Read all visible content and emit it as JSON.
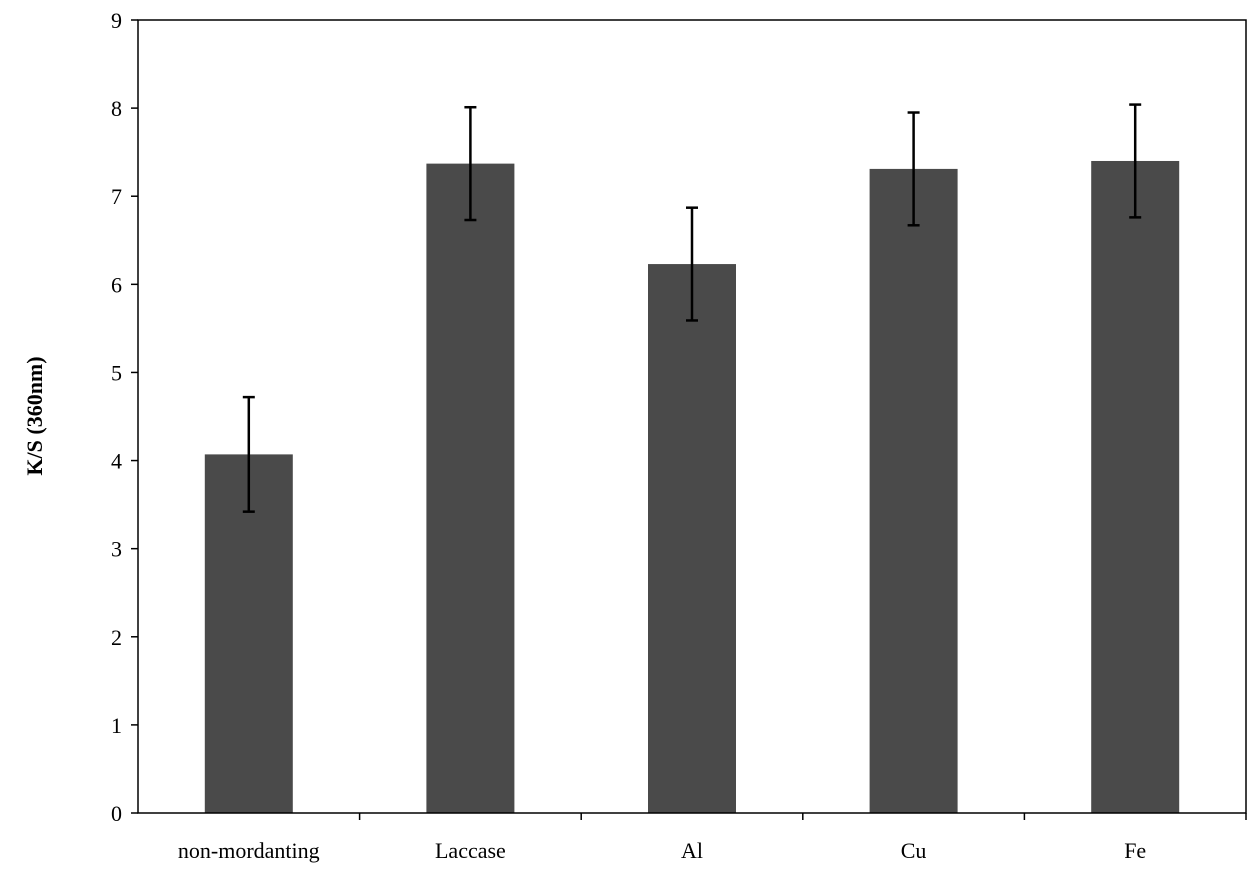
{
  "chart_data": {
    "type": "bar",
    "title": "",
    "xlabel": "",
    "ylabel": "K/S (360nm)",
    "ylim": [
      0,
      9
    ],
    "yticks": [
      "0",
      "1",
      "2",
      "3",
      "4",
      "5",
      "6",
      "7",
      "8",
      "9"
    ],
    "grid": false,
    "categories": [
      "non-mordanting",
      "Laccase",
      "Al",
      "Cu",
      "Fe"
    ],
    "values": [
      4.07,
      7.37,
      6.23,
      7.31,
      7.4
    ],
    "errors": [
      0.65,
      0.64,
      0.64,
      0.64,
      0.64
    ],
    "bar_color": "#4a4a4a",
    "error_color": "#000000"
  }
}
